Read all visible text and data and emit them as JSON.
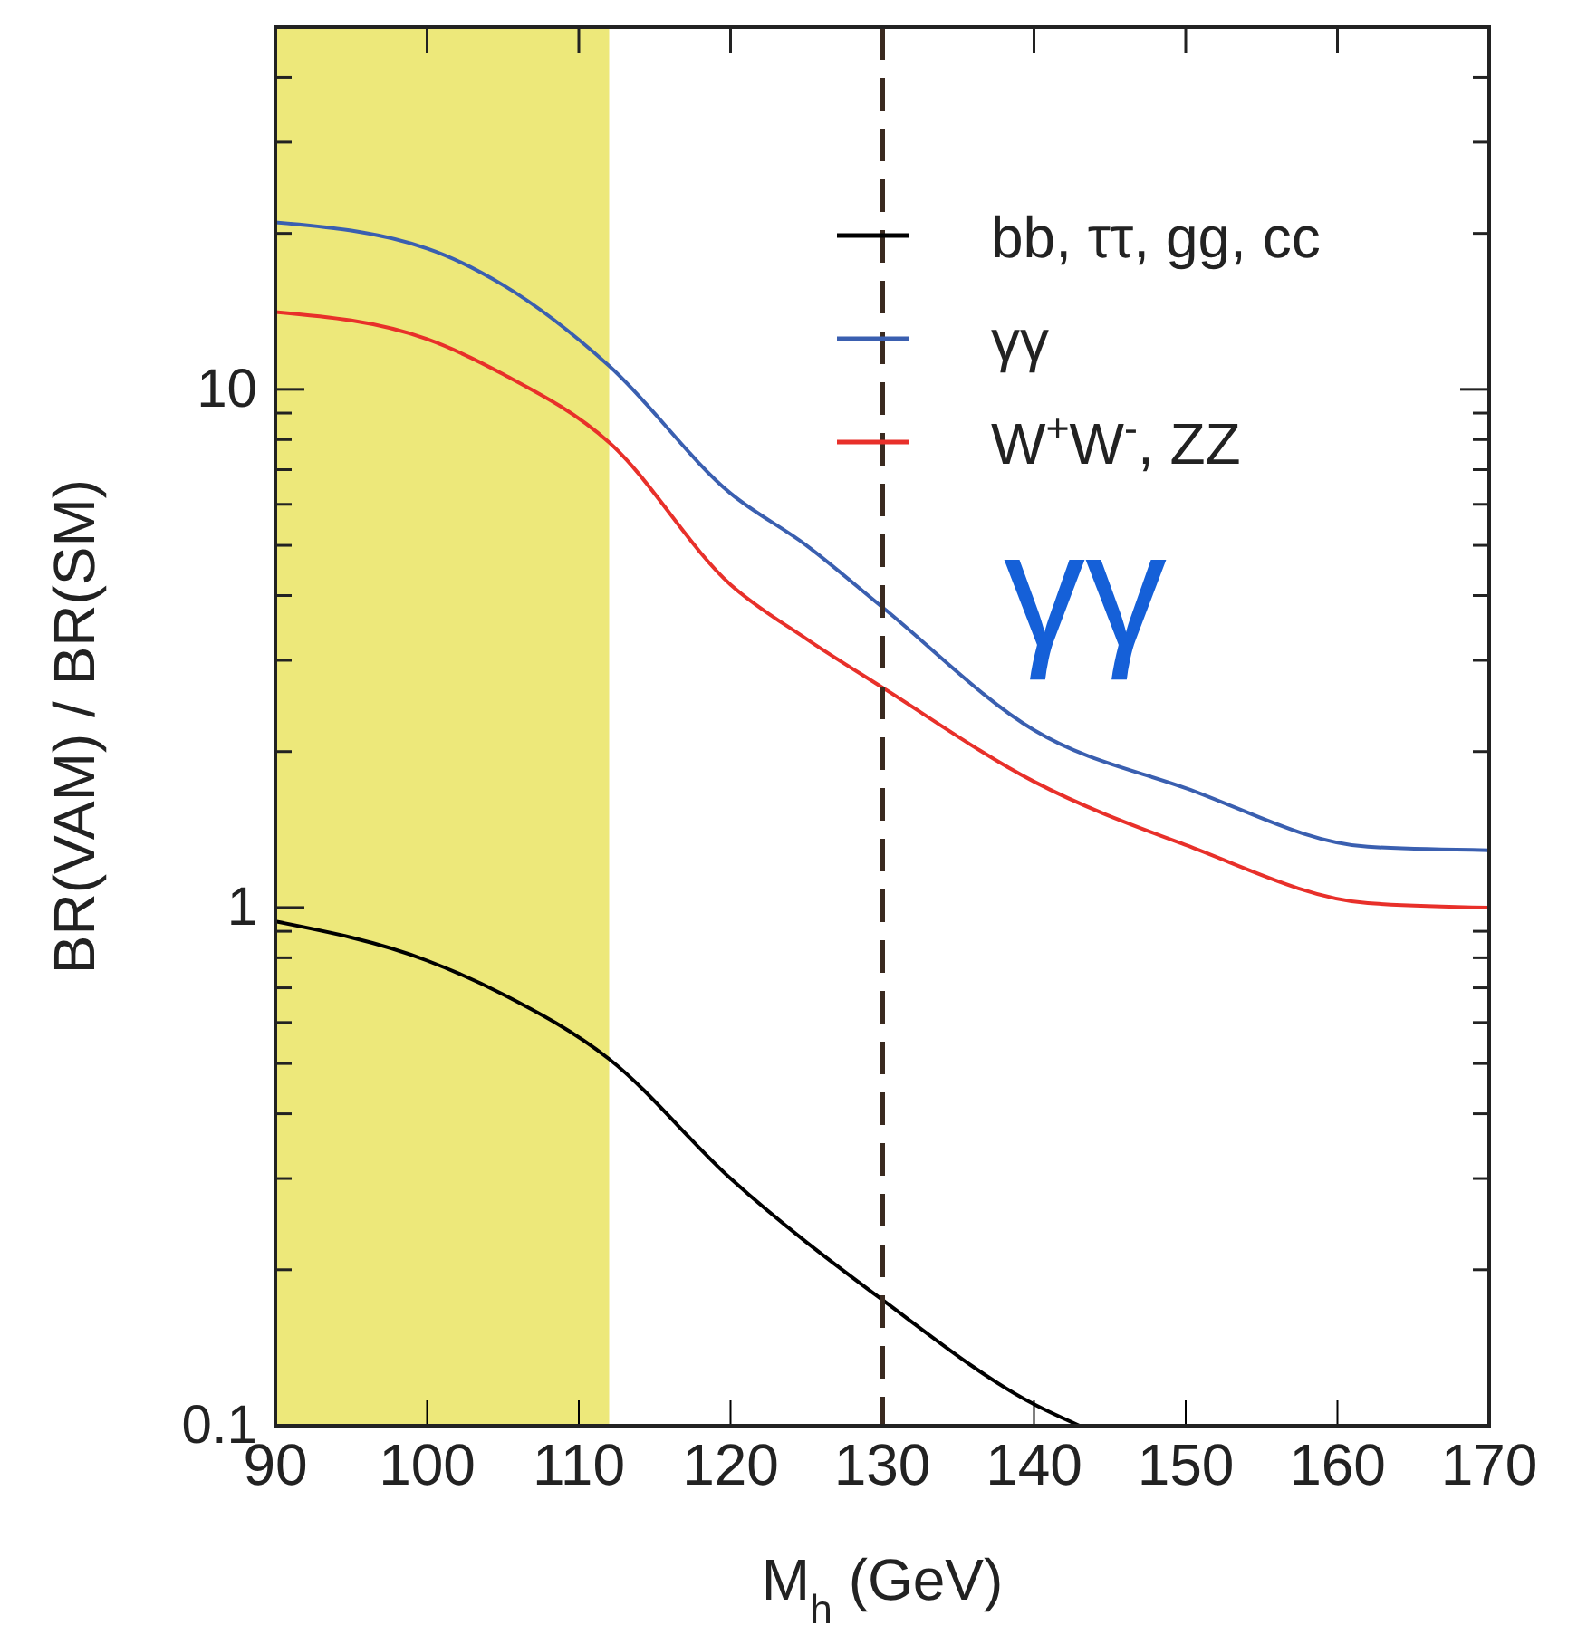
{
  "chart_data": {
    "type": "line",
    "xlabel": "M$_{h}$ (GeV)",
    "ylabel": "BR(VAM) / BR(SM)",
    "xlim": [
      90,
      170
    ],
    "xticks": [
      90,
      100,
      110,
      120,
      130,
      140,
      150,
      160,
      170
    ],
    "ylim": [
      0.1,
      50
    ],
    "log": true,
    "yticks": [
      {
        "value": 0.1,
        "label": "0.1"
      },
      {
        "value": 0.2,
        "label": null
      },
      {
        "value": 0.3,
        "label": null
      },
      {
        "value": 0.4,
        "label": null
      },
      {
        "value": 0.5,
        "label": null
      },
      {
        "value": 0.6,
        "label": null
      },
      {
        "value": 0.7,
        "label": null
      },
      {
        "value": 0.8,
        "label": null
      },
      {
        "value": 0.9,
        "label": null
      },
      {
        "value": 1,
        "label": "1"
      },
      {
        "value": 2,
        "label": null
      },
      {
        "value": 3,
        "label": null
      },
      {
        "value": 4,
        "label": null
      },
      {
        "value": 5,
        "label": null
      },
      {
        "value": 6,
        "label": null
      },
      {
        "value": 7,
        "label": null
      },
      {
        "value": 8,
        "label": null
      },
      {
        "value": 9,
        "label": null
      },
      {
        "value": 10,
        "label": "10"
      },
      {
        "value": 20,
        "label": null
      },
      {
        "value": 30,
        "label": null
      },
      {
        "value": 40,
        "label": null
      }
    ],
    "legend": "top right",
    "series": [
      {
        "name": "bb, ττ, gg, cc",
        "color": "#000000",
        "x": [
          90,
          100,
          105,
          112,
          120,
          130,
          140,
          143
        ],
        "values": [
          0.94,
          0.79,
          0.68,
          0.51,
          0.3,
          0.175,
          0.11,
          0.1
        ]
      },
      {
        "name": "γγ",
        "color": "#3a5fb0",
        "x": [
          90,
          100,
          105,
          112,
          120,
          125,
          130,
          140,
          150,
          162,
          170
        ],
        "values": [
          21,
          18.7,
          15.9,
          11.1,
          6.3,
          5.0,
          3.8,
          2.2,
          1.7,
          1.31,
          1.29
        ]
      },
      {
        "name": "W$^{+}$W$^{-}$, ZZ",
        "color": "#e8302a",
        "x": [
          90,
          100,
          105,
          112,
          120,
          125,
          130,
          140,
          150,
          162,
          170
        ],
        "values": [
          14.1,
          12.5,
          10.7,
          7.9,
          4.2,
          3.3,
          2.66,
          1.75,
          1.32,
          1.02,
          1.0
        ]
      }
    ],
    "bands": [
      {
        "axis": "x",
        "from": 90,
        "to": 112,
        "color": "#ede87a"
      }
    ],
    "ref_lines": [
      {
        "axis": "x",
        "value": 130,
        "color": "#3a2a20",
        "line_style": "dashed"
      }
    ],
    "annotations": [
      "γγ"
    ]
  }
}
